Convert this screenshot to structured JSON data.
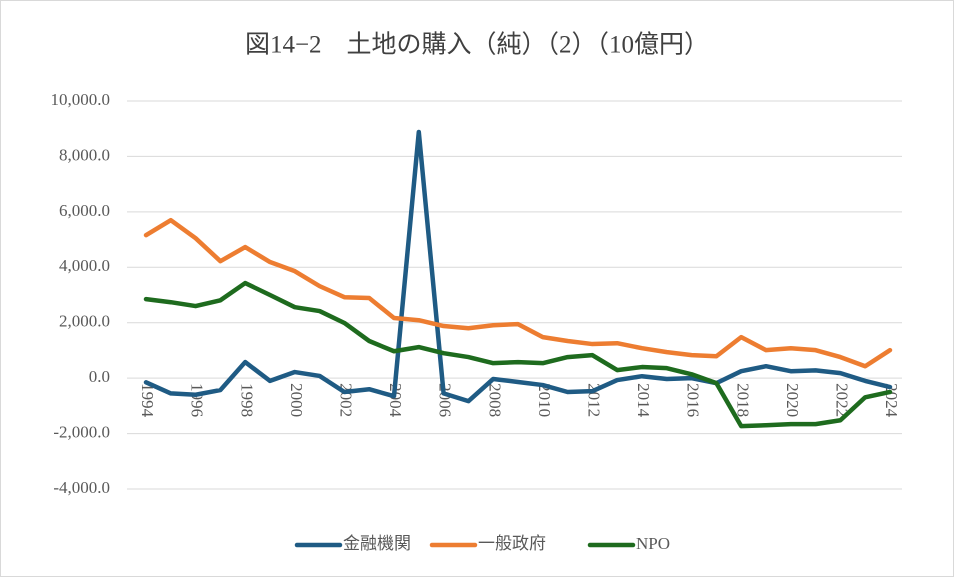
{
  "chart_data": {
    "type": "line",
    "title": "図14−2　土地の購入（純）（2）（10億円）",
    "categories": [
      "1994",
      null,
      "1996",
      null,
      "1998",
      null,
      "2000",
      null,
      "2002",
      null,
      "2004",
      null,
      "2006",
      null,
      "2008",
      null,
      "2010",
      null,
      "2012",
      null,
      "2014",
      null,
      "2016",
      null,
      "2018",
      null,
      "2020",
      null,
      "2022",
      null,
      "2024"
    ],
    "series": [
      {
        "name": "金融機関",
        "color": "#1f5b84",
        "values": [
          -150,
          -550,
          -600,
          -430,
          580,
          -100,
          220,
          80,
          -500,
          -400,
          -650,
          8880,
          -550,
          -830,
          -30,
          -140,
          -250,
          -500,
          -470,
          -70,
          70,
          -30,
          0,
          -180,
          250,
          430,
          250,
          280,
          180,
          -100,
          -320
        ]
      },
      {
        "name": "一般政府",
        "color": "#ed7d31",
        "values": [
          5160,
          5700,
          5050,
          4220,
          4730,
          4190,
          3860,
          3320,
          2920,
          2890,
          2170,
          2090,
          1880,
          1800,
          1910,
          1950,
          1480,
          1340,
          1230,
          1260,
          1080,
          940,
          830,
          790,
          1480,
          1010,
          1080,
          1010,
          760,
          430,
          1010
        ]
      },
      {
        "name": "NPO",
        "color": "#1e6b1e",
        "values": [
          2850,
          2740,
          2600,
          2810,
          3430,
          3000,
          2560,
          2420,
          1990,
          1340,
          970,
          1120,
          900,
          760,
          540,
          580,
          540,
          760,
          830,
          290,
          400,
          360,
          140,
          -180,
          -1730,
          -1700,
          -1660,
          -1660,
          -1520,
          -690,
          -500
        ]
      }
    ],
    "ylim": [
      -4000,
      10000
    ],
    "yticks": [
      {
        "value": -4000,
        "label": "-4,000.0"
      },
      {
        "value": -2000,
        "label": "-2,000.0"
      },
      {
        "value": 0,
        "label": "0.0"
      },
      {
        "value": 2000,
        "label": "2,000.0"
      },
      {
        "value": 4000,
        "label": "4,000.0"
      },
      {
        "value": 6000,
        "label": "6,000.0"
      },
      {
        "value": 8000,
        "label": "8,000.0"
      },
      {
        "value": 10000,
        "label": "10,000.0"
      }
    ],
    "grid": true,
    "legend": "bottom"
  }
}
